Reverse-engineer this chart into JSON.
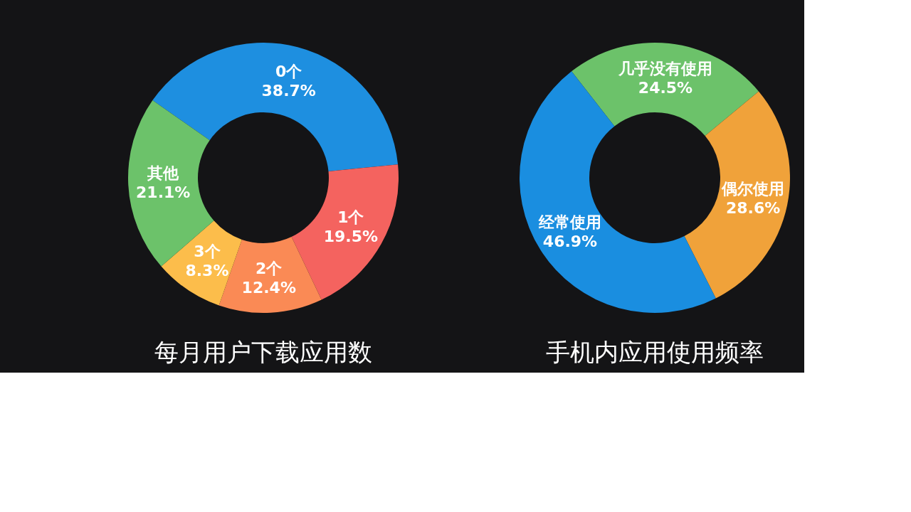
{
  "chart_data": [
    {
      "type": "donut",
      "title": "每月用户下载应用数",
      "categories": [
        "0个",
        "1个",
        "2个",
        "3个",
        "其他"
      ],
      "values": [
        38.7,
        19.5,
        12.4,
        8.3,
        21.1
      ],
      "value_labels": [
        "38.7%",
        "19.5%",
        "12.4%",
        "8.3%",
        "21.1%"
      ],
      "colors": [
        "#1e8fe0",
        "#f4635f",
        "#fa8a55",
        "#fcbd4b",
        "#6cc26a"
      ],
      "legend": false
    },
    {
      "type": "donut",
      "title": "手机内应用使用频率",
      "categories": [
        "几乎没有使用",
        "偶尔使用",
        "经常使用"
      ],
      "values": [
        24.5,
        28.6,
        46.9
      ],
      "value_labels": [
        "24.5%",
        "28.6%",
        "46.9%"
      ],
      "colors": [
        "#6cc26a",
        "#f0a23a",
        "#1a8ee0"
      ],
      "legend": false
    }
  ]
}
